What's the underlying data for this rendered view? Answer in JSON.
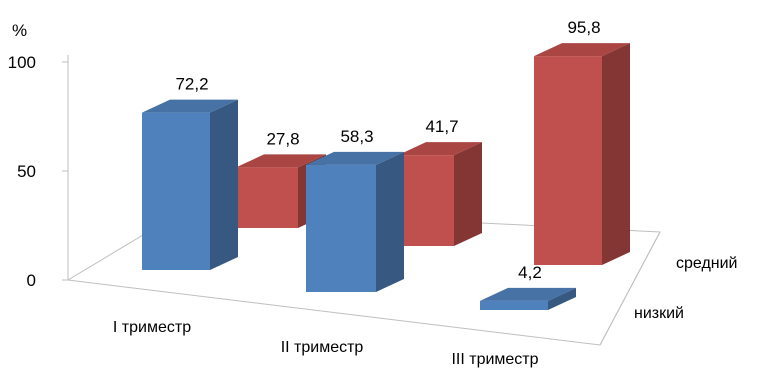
{
  "chart_data": {
    "type": "bar",
    "categories": [
      "I триместр",
      "II триместр",
      "III триместр"
    ],
    "series": [
      {
        "name": "низкий",
        "values": [
          72.2,
          58.3,
          4.2
        ],
        "labels": [
          "72,2",
          "58,3",
          "4,2"
        ],
        "color": "#4f81bd"
      },
      {
        "name": "средний",
        "values": [
          27.8,
          41.7,
          95.8
        ],
        "labels": [
          "27,8",
          "41,7",
          "95,8"
        ],
        "color": "#c0504d"
      }
    ],
    "y_unit": "%",
    "yticks": [
      0,
      50,
      100
    ],
    "ylim": [
      0,
      100
    ],
    "grid": false,
    "legend": "none"
  }
}
